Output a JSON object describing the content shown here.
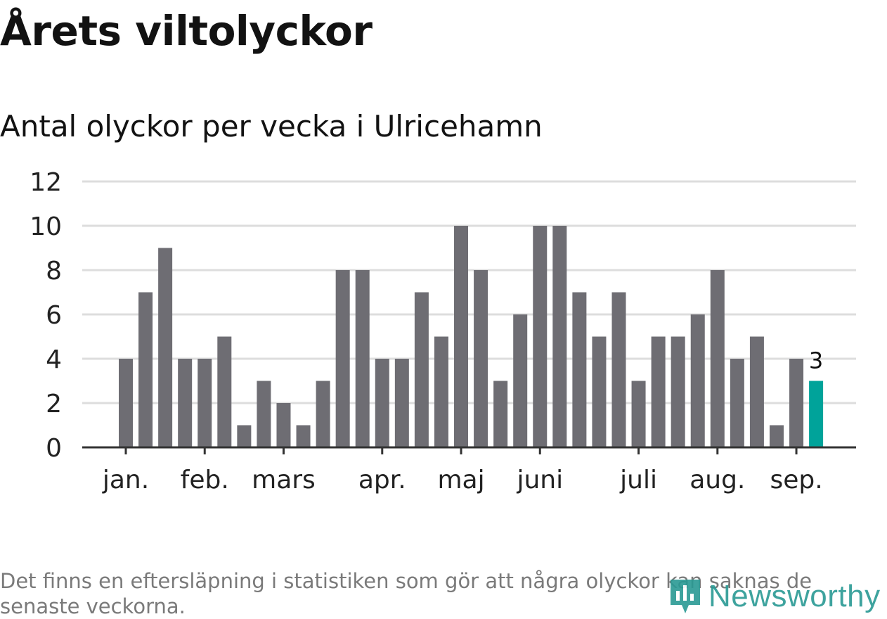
{
  "title": "Årets viltolyckor",
  "subtitle": "Antal olyckor per vecka i Ulricehamn",
  "footnote": "Det finns en eftersläpning i statistiken som gör att några olyckor kan saknas de senaste veckorna.",
  "brand": {
    "name": "Newsworthy",
    "icon": "newsworthy-logo-icon",
    "color": "#2a9a94"
  },
  "colors": {
    "bar": "#6e6d73",
    "highlight": "#00a39a",
    "grid": "#dddddd",
    "axis": "#333333",
    "tick_text": "#222222"
  },
  "chart_data": {
    "type": "bar",
    "title": "Årets viltolyckor",
    "subtitle": "Antal olyckor per vecka i Ulricehamn",
    "xlabel": "",
    "ylabel": "",
    "ylim": [
      0,
      12
    ],
    "yticks": [
      0,
      2,
      4,
      6,
      8,
      10,
      12
    ],
    "grid": true,
    "legend": "none",
    "values": [
      4,
      7,
      9,
      4,
      4,
      5,
      1,
      3,
      2,
      1,
      3,
      8,
      8,
      4,
      4,
      7,
      5,
      10,
      8,
      3,
      6,
      10,
      10,
      7,
      5,
      7,
      3,
      5,
      5,
      6,
      8,
      4,
      5,
      1,
      4,
      3
    ],
    "highlight_last": true,
    "highlight_label": "3",
    "month_labels": [
      {
        "label": "jan.",
        "week_index": 0
      },
      {
        "label": "feb.",
        "week_index": 4
      },
      {
        "label": "mars",
        "week_index": 8
      },
      {
        "label": "apr.",
        "week_index": 13
      },
      {
        "label": "maj",
        "week_index": 17
      },
      {
        "label": "juni",
        "week_index": 21
      },
      {
        "label": "juli",
        "week_index": 26
      },
      {
        "label": "aug.",
        "week_index": 30
      },
      {
        "label": "sep.",
        "week_index": 34
      }
    ]
  }
}
